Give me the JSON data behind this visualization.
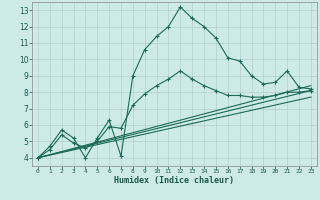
{
  "xlabel": "Humidex (Indice chaleur)",
  "bg_color": "#ceeae6",
  "grid_color": "#b0cfcb",
  "line_color": "#1a6b5a",
  "xlim": [
    -0.5,
    23.5
  ],
  "ylim": [
    3.5,
    13.5
  ],
  "xticks": [
    0,
    1,
    2,
    3,
    4,
    5,
    6,
    7,
    8,
    9,
    10,
    11,
    12,
    13,
    14,
    15,
    16,
    17,
    18,
    19,
    20,
    21,
    22,
    23
  ],
  "yticks": [
    4,
    5,
    6,
    7,
    8,
    9,
    10,
    11,
    12,
    13
  ],
  "curve1_x": [
    0,
    1,
    2,
    3,
    4,
    5,
    6,
    7,
    8,
    9,
    10,
    11,
    12,
    13,
    14,
    15,
    16,
    17,
    18,
    19,
    20,
    21,
    22,
    23
  ],
  "curve1_y": [
    4.0,
    4.7,
    5.7,
    5.2,
    4.0,
    5.2,
    6.3,
    4.1,
    9.0,
    10.6,
    11.4,
    12.0,
    13.2,
    12.5,
    12.0,
    11.3,
    10.1,
    9.9,
    9.0,
    8.5,
    8.6,
    9.3,
    8.3,
    8.2
  ],
  "curve2_x": [
    0,
    1,
    2,
    3,
    4,
    5,
    6,
    7,
    8,
    9,
    10,
    11,
    12,
    13,
    14,
    15,
    16,
    17,
    18,
    19,
    20,
    21,
    22,
    23
  ],
  "curve2_y": [
    4.0,
    4.5,
    5.4,
    4.9,
    4.6,
    5.0,
    5.9,
    5.8,
    7.2,
    7.9,
    8.4,
    8.8,
    9.3,
    8.8,
    8.4,
    8.1,
    7.8,
    7.8,
    7.7,
    7.7,
    7.8,
    8.0,
    8.0,
    8.1
  ],
  "line1_x": [
    0,
    23
  ],
  "line1_y": [
    4.0,
    8.4
  ],
  "line2_x": [
    0,
    23
  ],
  "line2_y": [
    4.0,
    8.1
  ],
  "line3_x": [
    0,
    23
  ],
  "line3_y": [
    4.0,
    7.7
  ]
}
